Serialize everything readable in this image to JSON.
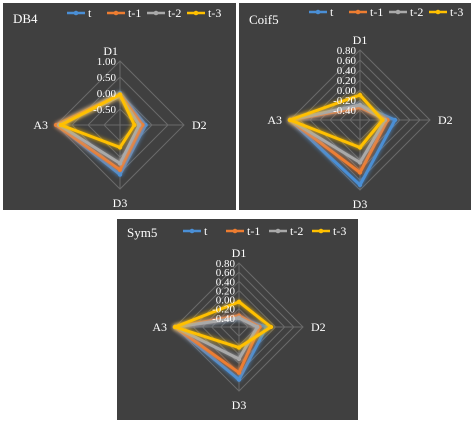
{
  "colors": {
    "t": "#4a8fd6",
    "t-1": "#ed7d31",
    "t-2": "#a9a9a9",
    "t-3": "#ffc000",
    "background": "#404040",
    "grid": "#6a6a6a"
  },
  "chart_data": [
    {
      "type": "radar",
      "title": "DB4",
      "axes": [
        "D1",
        "D2",
        "D3",
        "A3"
      ],
      "ticks": [
        "1.00",
        "0.50",
        "0.00",
        "-0.50"
      ],
      "rlim": [
        -1.0,
        1.0
      ],
      "legend": "top-right",
      "grid": true,
      "series": [
        {
          "name": "t",
          "values": [
            0.0,
            -0.2,
            0.55,
            0.95
          ]
        },
        {
          "name": "t-1",
          "values": [
            -0.05,
            -0.3,
            0.4,
            1.0
          ]
        },
        {
          "name": "t-2",
          "values": [
            -0.1,
            -0.4,
            0.2,
            0.9
          ]
        },
        {
          "name": "t-3",
          "values": [
            -0.05,
            -0.55,
            -0.3,
            0.85
          ]
        }
      ]
    },
    {
      "type": "radar",
      "title": "Coif5",
      "axes": [
        "D1",
        "D2",
        "D3",
        "A3"
      ],
      "ticks": [
        "0.80",
        "0.60",
        "0.40",
        "0.20",
        "0.00",
        "-0.20",
        "-0.40"
      ],
      "rlim": [
        -0.6,
        0.8
      ],
      "legend": "top-right",
      "grid": true,
      "series": [
        {
          "name": "t",
          "values": [
            -0.3,
            0.1,
            0.7,
            0.8
          ]
        },
        {
          "name": "t-1",
          "values": [
            -0.35,
            -0.05,
            0.45,
            0.8
          ]
        },
        {
          "name": "t-2",
          "values": [
            -0.3,
            -0.1,
            0.25,
            0.8
          ]
        },
        {
          "name": "t-3",
          "values": [
            -0.1,
            -0.15,
            -0.05,
            0.8
          ]
        }
      ]
    },
    {
      "type": "radar",
      "title": "Sym5",
      "axes": [
        "D1",
        "D2",
        "D3",
        "A3"
      ],
      "ticks": [
        "0.80",
        "0.60",
        "0.40",
        "0.20",
        "0.00",
        "-0.20",
        "-0.40"
      ],
      "rlim": [
        -0.6,
        0.8
      ],
      "legend": "top-right",
      "grid": true,
      "series": [
        {
          "name": "t",
          "values": [
            -0.4,
            0.0,
            0.55,
            0.8
          ]
        },
        {
          "name": "t-1",
          "values": [
            -0.35,
            -0.15,
            0.4,
            0.8
          ]
        },
        {
          "name": "t-2",
          "values": [
            -0.4,
            -0.2,
            0.1,
            0.8
          ]
        },
        {
          "name": "t-3",
          "values": [
            -0.05,
            0.1,
            -0.15,
            0.8
          ]
        }
      ]
    }
  ]
}
